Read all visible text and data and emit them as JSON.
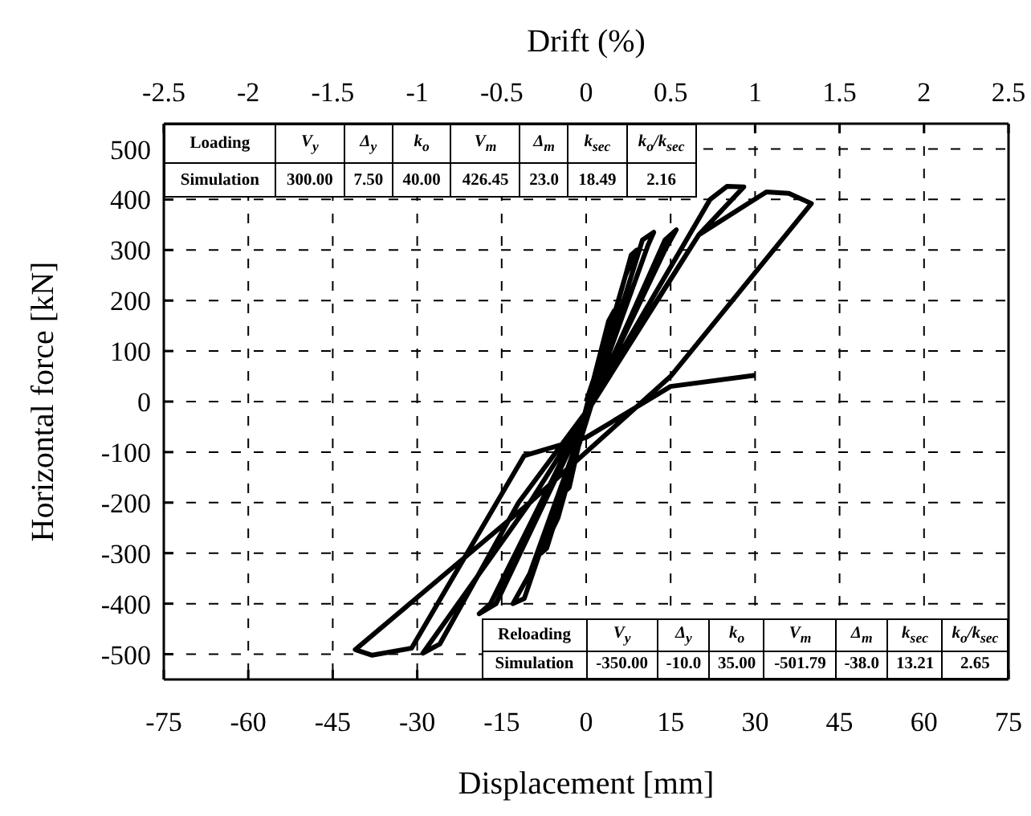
{
  "chart_data": {
    "type": "line",
    "xlabel": "Displacement [mm]",
    "ylabel": "Horizontal force [kN]",
    "x2label": "Drift (%)",
    "xlim": [
      -75,
      75
    ],
    "xticks": [
      -75,
      -60,
      -45,
      -30,
      -15,
      0,
      15,
      30,
      45,
      60,
      75
    ],
    "x2lim": [
      -2.5,
      2.5
    ],
    "x2ticks": [
      -2.5,
      -2,
      -1.5,
      -1,
      -0.5,
      0,
      0.5,
      1,
      1.5,
      2,
      2.5
    ],
    "ylim": [
      -550,
      550
    ],
    "yticks": [
      -500,
      -400,
      -300,
      -200,
      -100,
      0,
      100,
      200,
      300,
      400,
      500
    ],
    "grid": true,
    "series": [
      {
        "color": "#000000",
        "x": [
          0,
          3,
          5,
          4,
          -2,
          -4,
          -3,
          0,
          7,
          9,
          8,
          -5,
          -8,
          -7,
          0,
          10,
          12,
          11,
          -10,
          -13,
          -11,
          0,
          14,
          16,
          14,
          -16,
          -19,
          -17,
          0,
          22,
          25,
          28,
          20,
          -10,
          -29,
          -26,
          -12,
          0,
          20,
          32,
          36,
          40,
          15,
          -10,
          -41,
          -38,
          -31,
          -11,
          0,
          15,
          30
        ],
        "values": [
          0,
          100,
          180,
          160,
          -100,
          -180,
          -170,
          -20,
          250,
          300,
          290,
          -230,
          -300,
          -290,
          -40,
          320,
          335,
          310,
          -340,
          -400,
          -390,
          -30,
          320,
          340,
          300,
          -400,
          -420,
          -400,
          -20,
          400,
          426,
          425,
          330,
          -200,
          -498,
          -480,
          -200,
          -20,
          330,
          415,
          412,
          392,
          50,
          -200,
          -491,
          -502,
          -488,
          -107,
          -71,
          30,
          52
        ]
      }
    ],
    "annotations": [
      "Loading",
      "V$_{y}$",
      "Δ$_{y}$",
      "k$_{o}$",
      "V$_{m}$",
      "Δ$_{m}$",
      "k$_{sec}$",
      "k$_{o}$/k$_{sec}$",
      "Simulation",
      "300.00",
      "7.50",
      "40.00",
      "426.45",
      "23.0",
      "18.49",
      "2.16",
      "Reloading",
      "V$_{y}$",
      "Δ$_{y}$",
      "k$_{o}$",
      "V$_{m}$",
      "Δ$_{m}$",
      "k$_{sec}$",
      "k$_{o}$/k$_{sec}$",
      "Simulation",
      "-350.00",
      "-10.0",
      "35.00",
      "-501.79",
      "-38.0",
      "13.21",
      "2.65"
    ]
  }
}
